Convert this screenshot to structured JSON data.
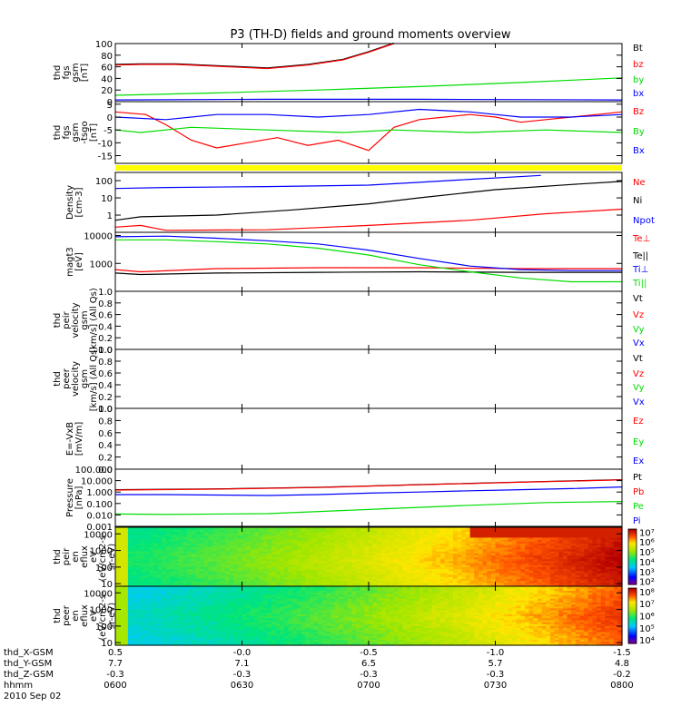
{
  "title": "P3 (TH-D) fields and ground moments overview",
  "colors": {
    "black": "#000000",
    "red": "#ff0000",
    "green": "#00dd00",
    "blue": "#0000ff",
    "yellow": "#ffff00"
  },
  "chart_data": [
    {
      "id": "fgs_mag",
      "type": "line",
      "ylabel": [
        "thd",
        "fgs",
        "gsm",
        "[nT]"
      ],
      "ylim": [
        0,
        100
      ],
      "yticks": [
        "0",
        "20",
        "40",
        "60",
        "80",
        "100"
      ],
      "ytick_values": [
        0,
        20,
        40,
        60,
        80,
        100
      ],
      "legend": [
        {
          "label": "Bt",
          "color": "#000000"
        },
        {
          "label": "bz",
          "color": "#ff0000"
        },
        {
          "label": "by",
          "color": "#00dd00"
        },
        {
          "label": "bx",
          "color": "#0000ff"
        }
      ],
      "series": [
        {
          "name": "Bt",
          "color": "#000000",
          "x": [
            0,
            0.05,
            0.12,
            0.2,
            0.3,
            0.38,
            0.45,
            0.5,
            0.55
          ],
          "y": [
            64,
            65,
            65,
            62,
            58,
            64,
            73,
            86,
            101
          ]
        },
        {
          "name": "bz",
          "color": "#ff0000",
          "x": [
            0,
            0.05,
            0.12,
            0.2,
            0.3,
            0.38,
            0.45,
            0.5,
            0.55
          ],
          "y": [
            63,
            64,
            64,
            61,
            57,
            63,
            72,
            85,
            100
          ]
        },
        {
          "name": "by",
          "color": "#00dd00",
          "x": [
            0,
            0.2,
            0.4,
            0.6,
            0.8,
            1.0
          ],
          "y": [
            11,
            15,
            20,
            26,
            33,
            41
          ]
        },
        {
          "name": "bx",
          "color": "#0000ff",
          "x": [
            0,
            0.3,
            0.6,
            1.0
          ],
          "y": [
            3,
            4,
            4,
            3
          ]
        }
      ]
    },
    {
      "id": "fgs_comp",
      "type": "line",
      "ylabel": [
        "thd",
        "fgs",
        "gsm",
        "-tsgo",
        "[nT]"
      ],
      "ylim": [
        -18,
        6
      ],
      "yticks": [
        "-15",
        "-10",
        "-5",
        "0",
        "5"
      ],
      "ytick_values": [
        -15,
        -10,
        -5,
        0,
        5
      ],
      "legend": [
        {
          "label": "Bz",
          "color": "#ff0000"
        },
        {
          "label": "By",
          "color": "#00dd00"
        },
        {
          "label": "Bx",
          "color": "#0000ff"
        }
      ],
      "series": [
        {
          "name": "Bz",
          "color": "#ff0000",
          "x": [
            0,
            0.06,
            0.1,
            0.15,
            0.2,
            0.26,
            0.32,
            0.38,
            0.44,
            0.5,
            0.55,
            0.6,
            0.65,
            0.7,
            0.75,
            0.8,
            0.85,
            0.9,
            0.95,
            1.0
          ],
          "y": [
            2,
            1,
            -3,
            -9,
            -12,
            -10,
            -8,
            -11,
            -9,
            -13,
            -4,
            -1,
            0,
            1,
            0,
            -2,
            -1,
            0,
            1,
            2
          ]
        },
        {
          "name": "By",
          "color": "#00dd00",
          "x": [
            0,
            0.05,
            0.15,
            0.3,
            0.45,
            0.55,
            0.7,
            0.85,
            1.0
          ],
          "y": [
            -5,
            -6,
            -4,
            -5,
            -6,
            -5,
            -6,
            -5,
            -6
          ]
        },
        {
          "name": "Bx",
          "color": "#0000ff",
          "x": [
            0,
            0.1,
            0.2,
            0.3,
            0.4,
            0.5,
            0.6,
            0.7,
            0.8,
            0.9,
            1.0
          ],
          "y": [
            0,
            -1,
            1,
            1,
            0,
            1,
            3,
            2,
            0,
            0,
            1
          ]
        }
      ]
    },
    {
      "id": "density",
      "type": "line",
      "scale": "log",
      "ylabel": [
        "Density",
        "[cm-3]"
      ],
      "ylim": [
        0.1,
        300
      ],
      "yticks": [
        "1",
        "10",
        "100"
      ],
      "ytick_values": [
        1,
        10,
        100
      ],
      "legend": [
        {
          "label": "Ne",
          "color": "#ff0000"
        },
        {
          "label": "Ni",
          "color": "#000000"
        },
        {
          "label": "Npot",
          "color": "#0000ff"
        }
      ],
      "series": [
        {
          "name": "Ne",
          "color": "#ff0000",
          "x": [
            0,
            0.05,
            0.1,
            0.3,
            0.5,
            0.7,
            0.85,
            1.0
          ],
          "y": [
            0.2,
            0.25,
            0.13,
            0.14,
            0.25,
            0.5,
            1.2,
            2.2
          ]
        },
        {
          "name": "Ni",
          "color": "#000000",
          "x": [
            0,
            0.05,
            0.2,
            0.35,
            0.5,
            0.6,
            0.75,
            0.9,
            1.0
          ],
          "y": [
            0.5,
            0.8,
            1.0,
            2.0,
            4.5,
            10,
            30,
            60,
            90
          ]
        },
        {
          "name": "Npot",
          "color": "#0000ff",
          "x": [
            0,
            0.1,
            0.3,
            0.5,
            0.6,
            0.7,
            0.78,
            0.84
          ],
          "y": [
            35,
            40,
            45,
            55,
            80,
            120,
            160,
            200
          ]
        }
      ]
    },
    {
      "id": "temperature",
      "type": "line",
      "scale": "log",
      "ylabel": [
        "magt3",
        "[eV]"
      ],
      "ylim": [
        100,
        13000
      ],
      "yticks": [
        "1000",
        "10000"
      ],
      "ytick_values": [
        1000,
        10000
      ],
      "legend": [
        {
          "label": "Te⊥",
          "color": "#ff0000"
        },
        {
          "label": "Te||",
          "color": "#000000"
        },
        {
          "label": "Ti⊥",
          "color": "#0000ff"
        },
        {
          "label": "Ti||",
          "color": "#00dd00"
        }
      ],
      "series": [
        {
          "name": "Te⊥",
          "color": "#ff0000",
          "x": [
            0,
            0.05,
            0.2,
            0.4,
            0.6,
            0.8,
            1.0
          ],
          "y": [
            600,
            500,
            650,
            700,
            700,
            650,
            650
          ]
        },
        {
          "name": "Te||",
          "color": "#000000",
          "x": [
            0,
            0.05,
            0.2,
            0.4,
            0.6,
            0.8,
            1.0
          ],
          "y": [
            450,
            400,
            450,
            480,
            500,
            480,
            480
          ]
        },
        {
          "name": "Ti⊥",
          "color": "#0000ff",
          "x": [
            0,
            0.1,
            0.2,
            0.3,
            0.4,
            0.5,
            0.6,
            0.7,
            0.8,
            0.9,
            1.0
          ],
          "y": [
            9000,
            9500,
            8000,
            6500,
            5000,
            3000,
            1500,
            800,
            600,
            550,
            550
          ]
        },
        {
          "name": "Ti||",
          "color": "#00dd00",
          "x": [
            0,
            0.1,
            0.2,
            0.3,
            0.4,
            0.5,
            0.6,
            0.7,
            0.8,
            0.9,
            1.0
          ],
          "y": [
            7000,
            7000,
            6000,
            5000,
            3500,
            2000,
            900,
            500,
            300,
            220,
            220
          ]
        }
      ]
    },
    {
      "id": "peir_vel",
      "type": "line",
      "ylabel": [
        "thd",
        "peir",
        "velocity",
        "gsm",
        "[km/s] (All Qs)"
      ],
      "ylim": [
        0,
        1
      ],
      "yticks": [
        "0.0",
        "0.2",
        "0.4",
        "0.6",
        "0.8",
        "1.0"
      ],
      "ytick_values": [
        0,
        0.2,
        0.4,
        0.6,
        0.8,
        1.0
      ],
      "legend": [
        {
          "label": "Vt",
          "color": "#000000"
        },
        {
          "label": "Vz",
          "color": "#ff0000"
        },
        {
          "label": "Vy",
          "color": "#00dd00"
        },
        {
          "label": "Vx",
          "color": "#0000ff"
        }
      ],
      "series": []
    },
    {
      "id": "peer_vel",
      "type": "line",
      "ylabel": [
        "thd",
        "peer",
        "velocity",
        "gsm",
        "[km/s] (All Qs)"
      ],
      "ylim": [
        0,
        1
      ],
      "yticks": [
        "0.0",
        "0.2",
        "0.4",
        "0.6",
        "0.8",
        "1.0"
      ],
      "ytick_values": [
        0,
        0.2,
        0.4,
        0.6,
        0.8,
        1.0
      ],
      "legend": [
        {
          "label": "Vt",
          "color": "#000000"
        },
        {
          "label": "Vz",
          "color": "#ff0000"
        },
        {
          "label": "Vy",
          "color": "#00dd00"
        },
        {
          "label": "Vx",
          "color": "#0000ff"
        }
      ],
      "series": []
    },
    {
      "id": "efield",
      "type": "line",
      "ylabel": [
        "E=-VxB",
        "[mV/m]"
      ],
      "ylim": [
        0,
        1
      ],
      "yticks": [
        "0.0",
        "0.2",
        "0.4",
        "0.6",
        "0.8",
        "1.0"
      ],
      "ytick_values": [
        0,
        0.2,
        0.4,
        0.6,
        0.8,
        1.0
      ],
      "legend": [
        {
          "label": "Ez",
          "color": "#ff0000"
        },
        {
          "label": "Ey",
          "color": "#00dd00"
        },
        {
          "label": "Ex",
          "color": "#0000ff"
        }
      ],
      "series": []
    },
    {
      "id": "pressure",
      "type": "line",
      "scale": "log",
      "ylabel": [
        "Pressure",
        "[nPa]"
      ],
      "ylim": [
        0.001,
        100
      ],
      "yticks": [
        "0.001",
        "0.010",
        "0.100",
        "1.000",
        "10.000",
        "100.000"
      ],
      "ytick_values": [
        0.001,
        0.01,
        0.1,
        1,
        10,
        100
      ],
      "legend": [
        {
          "label": "Pt",
          "color": "#000000"
        },
        {
          "label": "Pb",
          "color": "#ff0000"
        },
        {
          "label": "Pe",
          "color": "#00dd00"
        },
        {
          "label": "Pi",
          "color": "#0000ff"
        }
      ],
      "series": [
        {
          "name": "Pt",
          "color": "#000000",
          "x": [
            0,
            0.2,
            0.4,
            0.6,
            0.8,
            1.0
          ],
          "y": [
            1.6,
            1.9,
            2.6,
            4.5,
            7.5,
            12
          ]
        },
        {
          "name": "Pb",
          "color": "#ff0000",
          "x": [
            0,
            0.2,
            0.4,
            0.6,
            0.8,
            1.0
          ],
          "y": [
            1.5,
            1.8,
            2.5,
            4.3,
            7.2,
            11.5
          ]
        },
        {
          "name": "Pe",
          "color": "#00dd00",
          "x": [
            0,
            0.1,
            0.3,
            0.5,
            0.7,
            0.85,
            1.0
          ],
          "y": [
            0.012,
            0.011,
            0.013,
            0.03,
            0.07,
            0.12,
            0.15
          ]
        },
        {
          "name": "Pi",
          "color": "#0000ff",
          "x": [
            0,
            0.1,
            0.2,
            0.3,
            0.4,
            0.5,
            0.6,
            0.7,
            0.8,
            0.9,
            1.0
          ],
          "y": [
            0.6,
            0.6,
            0.55,
            0.5,
            0.6,
            0.8,
            1.0,
            1.3,
            1.6,
            2.0,
            2.8
          ]
        }
      ]
    },
    {
      "id": "peir_spec",
      "type": "heatmap",
      "ylabel": [
        "thd",
        "peir",
        "en",
        "eflux",
        "eV",
        "(eV/cm2-s-",
        "sr-eV)"
      ],
      "yticks": [
        "10",
        "100",
        "1000",
        "10000"
      ],
      "ytick_values": [
        10,
        100,
        1000,
        10000
      ],
      "ylim": [
        7,
        25000
      ],
      "colorbar": {
        "ticks": [
          "10⁷",
          "10⁶",
          "10⁵",
          "10⁴",
          "10³",
          "10²"
        ],
        "tick_exponents": [
          7,
          6,
          5,
          4,
          3,
          2
        ],
        "min_exp": 1.7,
        "max_exp": 7.3
      }
    },
    {
      "id": "peer_spec",
      "type": "heatmap",
      "ylabel": [
        "thd",
        "peer",
        "en",
        "eflux",
        "eV",
        "(eV/cm2-s-",
        "sr-eV)"
      ],
      "yticks": [
        "10",
        "100",
        "1000",
        "10000"
      ],
      "ytick_values": [
        10,
        100,
        1000,
        10000
      ],
      "ylim": [
        7,
        25000
      ],
      "colorbar": {
        "ticks": [
          "10⁸",
          "10⁷",
          "10⁶",
          "10⁵",
          "10⁴"
        ],
        "tick_exponents": [
          8,
          7,
          6,
          5,
          4
        ],
        "min_exp": 3.7,
        "max_exp": 8.3
      }
    }
  ],
  "xaxis": {
    "row_labels": [
      "thd_X-GSM",
      "thd_Y-GSM",
      "thd_Z-GSM",
      "hhmm",
      "2010 Sep 02"
    ],
    "ticks": [
      {
        "values": [
          "0.5",
          "7.7",
          "-0.3",
          "0600"
        ]
      },
      {
        "values": [
          "-0.0",
          "7.1",
          "-0.3",
          "0630"
        ]
      },
      {
        "values": [
          "-0.5",
          "6.5",
          "-0.3",
          "0700"
        ]
      },
      {
        "values": [
          "-1.0",
          "5.7",
          "-0.3",
          "0730"
        ]
      },
      {
        "values": [
          "-1.5",
          "4.8",
          "-0.2",
          "0800"
        ]
      }
    ]
  }
}
